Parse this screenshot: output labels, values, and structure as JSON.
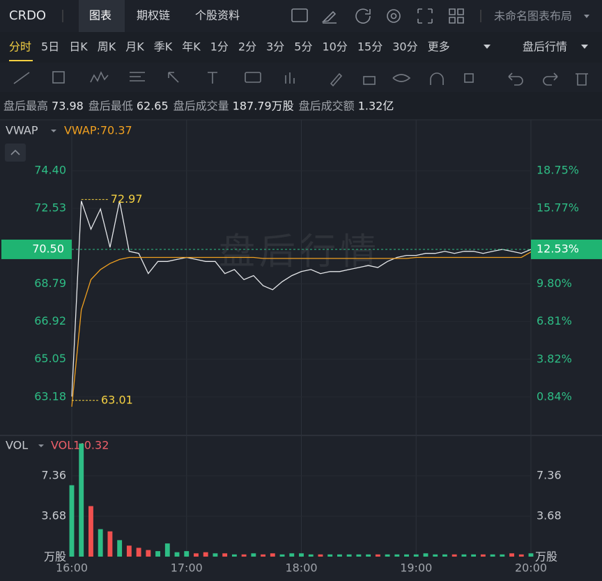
{
  "header": {
    "symbol": "CRDO",
    "tabs": [
      "图表",
      "期权链",
      "个股资料"
    ],
    "layout_name": "未命名图表布局"
  },
  "periods": {
    "items": [
      "分时",
      "5日",
      "日K",
      "周K",
      "月K",
      "季K",
      "年K",
      "1分",
      "2分",
      "3分",
      "5分",
      "10分",
      "15分",
      "30分",
      "更多"
    ],
    "session": "盘后行情"
  },
  "stats": [
    {
      "label": "盘后最高",
      "value": "73.98"
    },
    {
      "label": "盘后最低",
      "value": "62.65"
    },
    {
      "label": "盘后成交量",
      "value": "187.79万股"
    },
    {
      "label": "盘后成交额",
      "value": "1.32亿"
    }
  ],
  "chart_data": [
    {
      "type": "line",
      "indicator": "VWAP",
      "legend": "VWAP:70.37",
      "watermark": "盘后行情",
      "x": [
        "16:00",
        "16:05",
        "16:10",
        "16:15",
        "16:20",
        "16:25",
        "16:30",
        "16:35",
        "16:40",
        "16:45",
        "16:50",
        "16:55",
        "17:00",
        "17:05",
        "17:10",
        "17:15",
        "17:20",
        "17:25",
        "17:30",
        "17:35",
        "17:40",
        "17:45",
        "17:50",
        "17:55",
        "18:00",
        "18:05",
        "18:10",
        "18:15",
        "18:20",
        "18:25",
        "18:30",
        "18:35",
        "18:40",
        "18:45",
        "18:50",
        "18:55",
        "19:00",
        "19:05",
        "19:10",
        "19:15",
        "19:20",
        "19:25",
        "19:30",
        "19:35",
        "19:40",
        "19:45",
        "19:50",
        "19:55",
        "20:00"
      ],
      "series": [
        {
          "color": "#e6e8eb",
          "values": [
            63.2,
            72.9,
            71.5,
            72.5,
            70.6,
            72.9,
            70.4,
            70.3,
            69.3,
            69.9,
            69.9,
            70.0,
            70.1,
            70.0,
            69.9,
            69.9,
            69.3,
            69.5,
            69.0,
            69.2,
            68.7,
            68.5,
            68.9,
            69.2,
            69.4,
            69.5,
            69.3,
            69.4,
            69.4,
            69.5,
            69.6,
            69.7,
            69.6,
            69.9,
            70.1,
            70.2,
            70.2,
            70.3,
            70.3,
            70.4,
            70.3,
            70.4,
            70.4,
            70.3,
            70.4,
            70.5,
            70.4,
            70.3,
            70.5
          ]
        },
        {
          "name": "VWAP",
          "color": "#f0a020",
          "values": [
            62.7,
            67.5,
            69.0,
            69.5,
            69.8,
            70.0,
            70.1,
            70.1,
            70.1,
            70.1,
            70.1,
            70.1,
            70.1,
            70.1,
            70.1,
            70.1,
            70.1,
            70.1,
            70.1,
            70.1,
            70.05,
            70.05,
            70.05,
            70.05,
            70.05,
            70.05,
            70.05,
            70.05,
            70.05,
            70.05,
            70.05,
            70.05,
            70.05,
            70.05,
            70.05,
            70.05,
            70.1,
            70.1,
            70.1,
            70.1,
            70.1,
            70.1,
            70.1,
            70.1,
            70.1,
            70.1,
            70.1,
            70.1,
            70.37
          ]
        }
      ],
      "annotations": [
        {
          "value": 72.97,
          "x": "16:05"
        },
        {
          "value": 63.01,
          "x": "16:00"
        }
      ],
      "annotation_color": "#f5d142",
      "last_price": {
        "value": 70.5,
        "label": "70.50"
      },
      "last_change": {
        "value": 12.53,
        "label": "12.53%"
      },
      "ylim": [
        62.14,
        75.61
      ],
      "yticks": [
        63.18,
        65.05,
        66.92,
        68.79,
        72.53,
        {
          "value": 74.4,
          "label": "74.40"
        }
      ],
      "y2lim": [
        -0.82,
        20.68
      ],
      "y2ticks": [
        {
          "value": 0.84,
          "label": "0.84%"
        },
        {
          "value": 3.82,
          "label": "3.82%"
        },
        {
          "value": 6.81,
          "label": "6.81%"
        },
        {
          "value": 9.8,
          "label": "9.80%"
        },
        {
          "value": 15.77,
          "label": "15.77%"
        },
        {
          "value": 18.75,
          "label": "18.75%"
        }
      ],
      "tick_color": "#2ebd85",
      "grid": true
    },
    {
      "type": "bar",
      "indicator": "VOL",
      "legend": "VOL1:0.32",
      "y_label": "万股",
      "values": [
        6.5,
        10.3,
        4.6,
        2.5,
        2.3,
        1.5,
        1.0,
        0.8,
        0.6,
        0.5,
        1.2,
        0.4,
        0.5,
        0.3,
        0.4,
        0.3,
        0.3,
        0.2,
        0.2,
        0.3,
        0.2,
        0.3,
        0.2,
        0.3,
        0.3,
        0.2,
        0.2,
        0.2,
        0.2,
        0.2,
        0.2,
        0.2,
        0.2,
        0.2,
        0.2,
        0.2,
        0.2,
        0.3,
        0.2,
        0.2,
        0.2,
        0.2,
        0.2,
        0.2,
        0.2,
        0.2,
        0.3,
        0.2,
        0.3
      ],
      "up_color": "#2ebd85",
      "down_color": "#f0504f",
      "ylim": [
        0,
        10.72
      ],
      "yticks": [
        3.68,
        7.36
      ],
      "xticks": [
        "16:00",
        "17:00",
        "18:00",
        "19:00",
        "20:00"
      ]
    }
  ]
}
